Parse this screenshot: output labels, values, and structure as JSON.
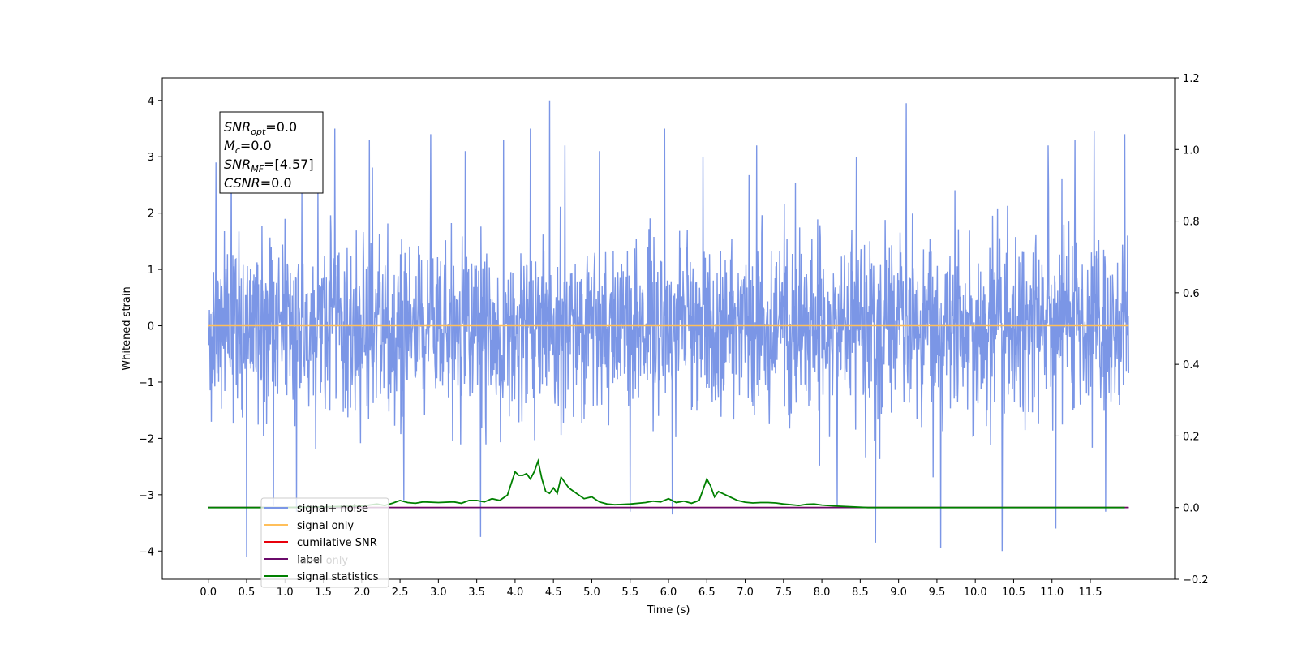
{
  "chart_data": {
    "type": "line",
    "xlabel": "Time (s)",
    "ylabel": "Whitened strain",
    "y2label": "",
    "xlim": [
      -0.6,
      12.6
    ],
    "ylim": [
      -4.5,
      4.4
    ],
    "y2lim": [
      -0.2,
      1.2
    ],
    "x_ticks": [
      "0.0",
      "0.5",
      "1.0",
      "1.5",
      "2.0",
      "2.5",
      "3.0",
      "3.5",
      "4.0",
      "4.5",
      "5.0",
      "5.5",
      "6.0",
      "6.5",
      "7.0",
      "7.5",
      "8.0",
      "8.5",
      "9.0",
      "9.5",
      "10.0",
      "10.5",
      "11.0",
      "11.5"
    ],
    "y_ticks": [
      "4",
      "3",
      "2",
      "1",
      "0",
      "−1",
      "−2",
      "−3",
      "−4"
    ],
    "y2_ticks": [
      "1.2",
      "1.0",
      "0.8",
      "0.6",
      "0.4",
      "0.2",
      "0.0",
      "−0.2"
    ],
    "grid": false,
    "legend_position": "lower-left",
    "annotation_box": {
      "lines": [
        {
          "base": "SNR",
          "sub": "opt",
          "rest": "=0.0"
        },
        {
          "base": "M",
          "sub": "c",
          "rest": "=0.0"
        },
        {
          "base": "SNR",
          "sub": "MF",
          "rest": "=[4.57]"
        },
        {
          "base": "CSNR",
          "sub": "",
          "rest": "=0.0"
        }
      ]
    },
    "series": [
      {
        "name": "signal+ noise",
        "color": "#7b96e6",
        "axis": "left",
        "kind": "noise",
        "x_range": [
          0.0,
          12.0
        ],
        "typical_range": [
          -1.7,
          1.9
        ],
        "extremes": [
          -4.1,
          4.0
        ],
        "spikes": [
          {
            "x": 0.1,
            "y": 2.9
          },
          {
            "x": 0.3,
            "y": 3.0
          },
          {
            "x": 0.5,
            "y": -4.1
          },
          {
            "x": 0.85,
            "y": -3.2
          },
          {
            "x": 1.15,
            "y": -3.3
          },
          {
            "x": 1.65,
            "y": 3.5
          },
          {
            "x": 2.1,
            "y": 3.3
          },
          {
            "x": 2.55,
            "y": -3.1
          },
          {
            "x": 2.9,
            "y": 3.4
          },
          {
            "x": 3.35,
            "y": 3.1
          },
          {
            "x": 3.55,
            "y": -3.75
          },
          {
            "x": 3.85,
            "y": 3.3
          },
          {
            "x": 4.2,
            "y": 3.5
          },
          {
            "x": 4.45,
            "y": 4.0
          },
          {
            "x": 4.65,
            "y": 3.2
          },
          {
            "x": 5.1,
            "y": 3.1
          },
          {
            "x": 5.5,
            "y": -3.3
          },
          {
            "x": 5.95,
            "y": 3.5
          },
          {
            "x": 6.05,
            "y": -3.35
          },
          {
            "x": 6.45,
            "y": 3.0
          },
          {
            "x": 7.15,
            "y": 3.2
          },
          {
            "x": 8.2,
            "y": -3.2
          },
          {
            "x": 8.45,
            "y": 3.0
          },
          {
            "x": 8.7,
            "y": -3.85
          },
          {
            "x": 9.1,
            "y": 3.95
          },
          {
            "x": 9.55,
            "y": -3.95
          },
          {
            "x": 10.35,
            "y": -4.0
          },
          {
            "x": 10.95,
            "y": 3.2
          },
          {
            "x": 11.05,
            "y": -3.6
          },
          {
            "x": 11.3,
            "y": 3.3
          },
          {
            "x": 11.55,
            "y": 3.45
          },
          {
            "x": 11.95,
            "y": 3.4
          },
          {
            "x": 11.7,
            "y": -3.3
          }
        ]
      },
      {
        "name": "signal only",
        "color": "#ffbf5a",
        "axis": "left",
        "x": [
          0.0,
          12.0
        ],
        "y": [
          0.0,
          0.0
        ]
      },
      {
        "name": "cumilative SNR",
        "color": "#e8000b",
        "axis": "right",
        "x": [
          0.0,
          12.0
        ],
        "y": [
          0.0,
          0.0
        ]
      },
      {
        "name": "label",
        "color": "#6a0a6a",
        "axis": "right",
        "x": [
          0.0,
          12.0
        ],
        "y": [
          0.0,
          0.0
        ]
      },
      {
        "name": "label only",
        "color": "#6a0a6a",
        "axis": "right",
        "hidden_in_legend_text": true,
        "x": [
          0.0,
          12.0
        ],
        "y": [
          0.0,
          0.0
        ]
      },
      {
        "name": "signal statistics",
        "color": "#008000",
        "axis": "right",
        "x": [
          0.0,
          0.5,
          1.0,
          1.5,
          2.0,
          2.2,
          2.3,
          2.4,
          2.5,
          2.6,
          2.7,
          2.8,
          3.0,
          3.2,
          3.3,
          3.4,
          3.5,
          3.6,
          3.7,
          3.8,
          3.9,
          4.0,
          4.05,
          4.1,
          4.15,
          4.2,
          4.25,
          4.3,
          4.35,
          4.4,
          4.45,
          4.5,
          4.55,
          4.6,
          4.7,
          4.8,
          4.9,
          5.0,
          5.1,
          5.2,
          5.3,
          5.5,
          5.7,
          5.8,
          5.9,
          6.0,
          6.05,
          6.1,
          6.2,
          6.3,
          6.4,
          6.5,
          6.55,
          6.6,
          6.65,
          6.7,
          6.8,
          6.9,
          7.0,
          7.1,
          7.2,
          7.3,
          7.4,
          7.5,
          7.6,
          7.7,
          7.8,
          7.9,
          8.0,
          8.2,
          8.4,
          8.6,
          9.0,
          9.5,
          10.0,
          10.5,
          11.0,
          11.5,
          11.95
        ],
        "y": [
          0.0,
          0.0,
          0.0,
          0.002,
          0.004,
          0.01,
          0.006,
          0.012,
          0.02,
          0.014,
          0.012,
          0.016,
          0.014,
          0.016,
          0.012,
          0.02,
          0.02,
          0.016,
          0.025,
          0.02,
          0.035,
          0.1,
          0.09,
          0.09,
          0.095,
          0.08,
          0.1,
          0.13,
          0.08,
          0.045,
          0.04,
          0.055,
          0.04,
          0.085,
          0.055,
          0.04,
          0.025,
          0.03,
          0.016,
          0.01,
          0.008,
          0.01,
          0.014,
          0.018,
          0.016,
          0.025,
          0.02,
          0.014,
          0.018,
          0.012,
          0.02,
          0.08,
          0.06,
          0.03,
          0.045,
          0.04,
          0.03,
          0.02,
          0.015,
          0.013,
          0.014,
          0.014,
          0.013,
          0.01,
          0.008,
          0.006,
          0.009,
          0.01,
          0.007,
          0.004,
          0.002,
          0.0,
          0.0,
          0.0,
          0.0,
          0.0,
          0.0,
          0.0,
          0.0
        ]
      }
    ]
  }
}
